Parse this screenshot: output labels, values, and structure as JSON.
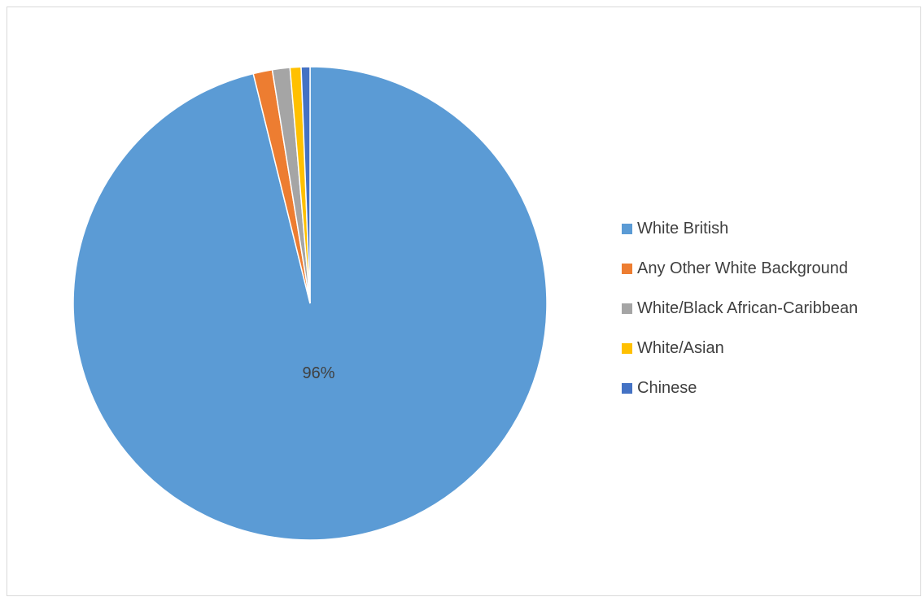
{
  "chart_data": {
    "type": "pie",
    "title": "",
    "categories": [
      "White British",
      "Any Other White Background",
      "White/Black African-Caribbean",
      "White/Asian",
      "Chinese"
    ],
    "values": [
      96,
      1.3,
      1.2,
      0.75,
      0.6
    ],
    "data_labels": [
      "96%",
      "",
      "",
      "",
      ""
    ],
    "colors": [
      "#5B9BD5",
      "#ED7D31",
      "#A5A5A5",
      "#FFC000",
      "#4472C4"
    ],
    "start_angle": "top",
    "direction": "clockwise",
    "legend_position": "right"
  }
}
